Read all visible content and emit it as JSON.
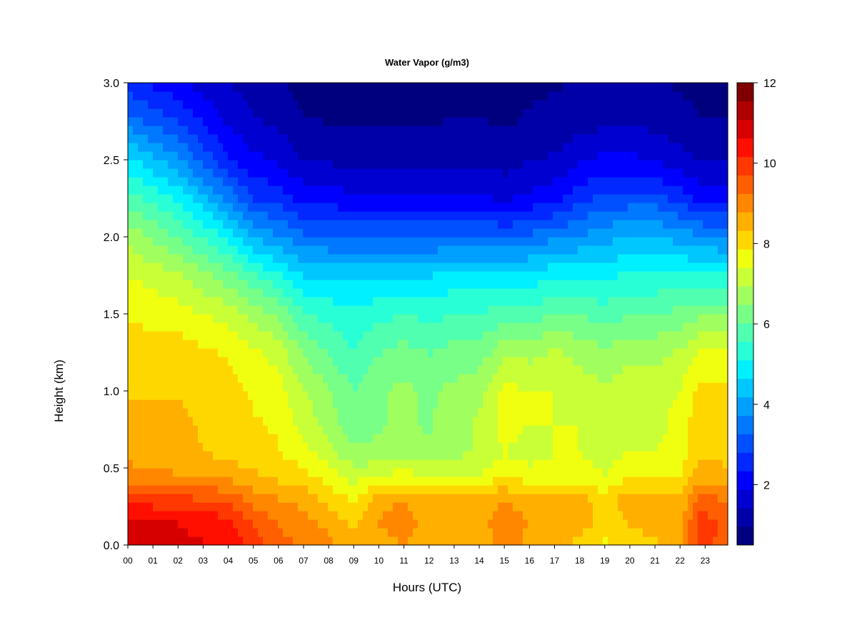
{
  "chart_data": {
    "type": "heatmap",
    "title": "Water Vapor (g/m3)",
    "xlabel": "Hours (UTC)",
    "ylabel": "Height (km)",
    "x_ticks": [
      "00",
      "01",
      "02",
      "03",
      "04",
      "05",
      "06",
      "07",
      "08",
      "09",
      "10",
      "11",
      "12",
      "13",
      "14",
      "15",
      "16",
      "17",
      "18",
      "19",
      "20",
      "21",
      "22",
      "23"
    ],
    "y_ticks": [
      "0.0",
      "0.5",
      "1.0",
      "1.5",
      "2.0",
      "2.5",
      "3.0"
    ],
    "xlim": [
      0,
      23.9
    ],
    "ylim": [
      0,
      3.0
    ],
    "colorbar": {
      "ticks": [
        "2",
        "4",
        "6",
        "8",
        "10",
        "12"
      ],
      "range": [
        0.5,
        12
      ],
      "levels": 23,
      "colors": [
        "#00007F",
        "#0000A8",
        "#0000D1",
        "#0000FF",
        "#0028FF",
        "#0050FF",
        "#0078FF",
        "#00A0FF",
        "#00C8FF",
        "#00F0FF",
        "#28FFD7",
        "#50FFAF",
        "#78FF87",
        "#A0FF5F",
        "#C8FF37",
        "#F0FF0F",
        "#FFD700",
        "#FFAF00",
        "#FF8700",
        "#FF5F00",
        "#FF3700",
        "#FF0F00",
        "#D70000",
        "#AF0000",
        "#7F0000"
      ]
    },
    "profile_heights_km": [
      0.0,
      0.15,
      0.3,
      0.45,
      0.6,
      0.8,
      1.0,
      1.25,
      1.5,
      1.75,
      2.0,
      2.25,
      2.5,
      2.75,
      3.0
    ],
    "profiles": [
      {
        "hour": 0,
        "values": [
          11.0,
          10.8,
          10.0,
          9.0,
          8.6,
          8.4,
          8.3,
          8.1,
          7.8,
          7.4,
          6.8,
          5.8,
          4.8,
          3.5,
          2.5
        ]
      },
      {
        "hour": 2,
        "values": [
          10.8,
          10.6,
          9.8,
          8.8,
          8.5,
          8.4,
          8.3,
          8.1,
          7.6,
          7.0,
          6.0,
          5.0,
          3.8,
          2.8,
          2.0
        ]
      },
      {
        "hour": 4,
        "values": [
          10.5,
          10.3,
          9.6,
          8.6,
          8.2,
          8.1,
          8.0,
          7.8,
          7.2,
          6.2,
          5.0,
          3.6,
          2.4,
          1.8,
          1.4
        ]
      },
      {
        "hour": 5,
        "values": [
          10.0,
          9.6,
          9.0,
          8.4,
          8.0,
          7.9,
          7.8,
          7.5,
          6.8,
          5.6,
          4.2,
          2.8,
          2.0,
          1.5,
          1.2
        ]
      },
      {
        "hour": 6,
        "values": [
          9.4,
          9.2,
          8.8,
          8.2,
          7.9,
          7.8,
          7.6,
          7.2,
          6.4,
          5.2,
          3.8,
          2.6,
          1.8,
          1.3,
          1.0
        ]
      },
      {
        "hour": 7,
        "values": [
          9.2,
          9.0,
          8.6,
          8.0,
          7.6,
          7.2,
          7.0,
          6.4,
          5.6,
          4.6,
          3.4,
          2.2,
          1.4,
          1.0,
          0.8
        ]
      },
      {
        "hour": 9,
        "values": [
          8.6,
          8.2,
          7.8,
          7.2,
          6.6,
          6.2,
          6.0,
          5.6,
          5.2,
          4.5,
          3.2,
          2.0,
          1.3,
          0.9,
          0.8
        ]
      },
      {
        "hour": 10,
        "values": [
          8.6,
          8.8,
          8.6,
          7.4,
          6.6,
          6.4,
          6.4,
          6.0,
          5.4,
          4.6,
          3.2,
          2.0,
          1.3,
          0.9,
          0.8
        ]
      },
      {
        "hour": 11,
        "values": [
          8.8,
          9.0,
          8.8,
          7.6,
          6.8,
          6.6,
          6.6,
          6.2,
          5.6,
          4.6,
          3.2,
          2.0,
          1.2,
          0.9,
          0.8
        ]
      },
      {
        "hour": 12,
        "values": [
          8.4,
          8.6,
          8.4,
          7.4,
          6.6,
          6.4,
          6.4,
          6.0,
          5.4,
          4.6,
          3.2,
          2.0,
          1.2,
          0.9,
          0.8
        ]
      },
      {
        "hour": 13,
        "values": [
          8.6,
          8.8,
          8.4,
          7.4,
          6.8,
          6.8,
          6.6,
          6.2,
          5.6,
          4.8,
          3.4,
          2.0,
          1.3,
          1.0,
          0.8
        ]
      },
      {
        "hour": 14,
        "values": [
          8.4,
          8.6,
          8.4,
          7.4,
          7.0,
          7.0,
          6.8,
          6.2,
          5.6,
          4.8,
          3.4,
          2.0,
          1.3,
          1.0,
          0.8
        ]
      },
      {
        "hour": 15,
        "values": [
          9.0,
          9.2,
          8.8,
          7.8,
          7.4,
          7.6,
          7.6,
          6.8,
          5.8,
          4.8,
          3.2,
          1.8,
          1.2,
          0.9,
          0.8
        ]
      },
      {
        "hour": 16,
        "values": [
          8.6,
          8.8,
          8.4,
          7.6,
          7.2,
          7.4,
          7.4,
          6.8,
          5.8,
          4.8,
          3.4,
          2.0,
          1.4,
          1.0,
          0.9
        ]
      },
      {
        "hour": 17,
        "values": [
          8.4,
          8.6,
          8.4,
          7.6,
          7.4,
          7.4,
          7.4,
          7.0,
          6.0,
          5.0,
          3.6,
          2.2,
          1.5,
          1.1,
          0.9
        ]
      },
      {
        "hour": 18,
        "values": [
          8.2,
          8.6,
          8.6,
          7.6,
          7.4,
          7.4,
          7.2,
          6.8,
          6.0,
          5.0,
          3.8,
          2.6,
          1.8,
          1.2,
          1.0
        ]
      },
      {
        "hour": 19,
        "values": [
          7.8,
          8.0,
          8.0,
          7.4,
          7.2,
          7.2,
          7.0,
          6.6,
          5.8,
          5.0,
          4.0,
          3.0,
          2.0,
          1.3,
          1.0
        ]
      },
      {
        "hour": 20,
        "values": [
          8.0,
          8.4,
          8.6,
          7.8,
          7.4,
          7.2,
          7.2,
          6.8,
          6.0,
          5.2,
          4.2,
          3.0,
          2.0,
          1.3,
          1.0
        ]
      },
      {
        "hour": 21,
        "values": [
          8.2,
          8.6,
          8.6,
          7.8,
          7.4,
          7.2,
          7.2,
          6.8,
          6.0,
          5.2,
          4.2,
          3.0,
          1.8,
          1.3,
          1.0
        ]
      },
      {
        "hour": 22,
        "values": [
          8.6,
          8.6,
          8.4,
          7.8,
          7.6,
          7.6,
          7.4,
          7.0,
          6.2,
          5.2,
          4.0,
          2.6,
          1.6,
          1.1,
          0.9
        ]
      },
      {
        "hour": 22.8,
        "values": [
          10.0,
          10.0,
          9.4,
          8.6,
          8.2,
          8.2,
          8.0,
          7.4,
          6.4,
          5.2,
          3.8,
          2.2,
          1.4,
          1.0,
          0.8
        ]
      },
      {
        "hour": 23.9,
        "values": [
          9.4,
          9.6,
          9.2,
          8.4,
          8.2,
          8.2,
          8.0,
          7.4,
          6.4,
          5.2,
          3.6,
          2.2,
          1.4,
          1.0,
          0.8
        ]
      }
    ]
  }
}
